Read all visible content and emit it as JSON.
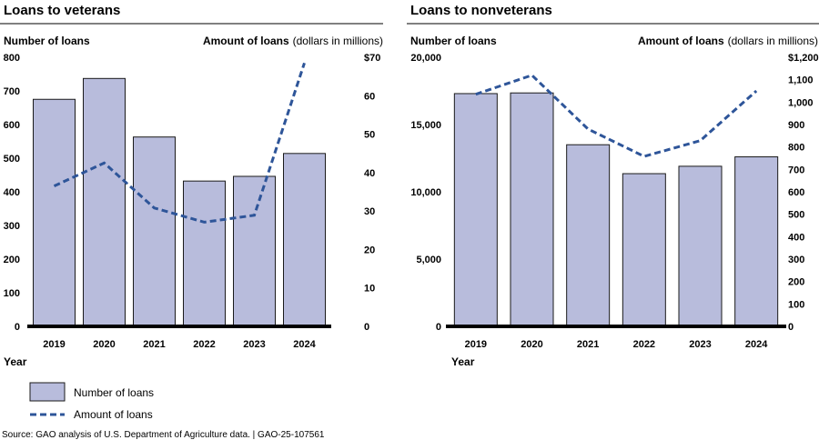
{
  "colors": {
    "bar_fill": "#b8bcdc",
    "bar_stroke": "#1a1a1a",
    "line": "#2e5599",
    "axis": "#000000"
  },
  "chart_data": [
    {
      "type": "bar",
      "title": "Loans to veterans",
      "ylabel": "Number of loans",
      "y2label": "Amount of loans",
      "y2label_units": "(dollars in millions)",
      "xlabel": "Year",
      "categories": [
        "2019",
        "2020",
        "2021",
        "2022",
        "2023",
        "2024"
      ],
      "ylim": [
        0,
        800
      ],
      "y2lim": [
        0,
        70
      ],
      "yticks": [
        "0",
        "100",
        "200",
        "300",
        "400",
        "500",
        "600",
        "700",
        "800"
      ],
      "y2ticks": [
        "0",
        "10",
        "20",
        "30",
        "40",
        "50",
        "60",
        "$70"
      ],
      "series": [
        {
          "name": "Number of loans",
          "type": "bar",
          "axis": "left",
          "values": [
            675,
            737,
            563,
            432,
            446,
            514
          ]
        },
        {
          "name": "Amount of loans",
          "type": "line",
          "axis": "right",
          "values": [
            36.5,
            42.5,
            30.8,
            27.1,
            28.9,
            68.5
          ]
        }
      ]
    },
    {
      "type": "bar",
      "title": "Loans to nonveterans",
      "ylabel": "Number of loans",
      "y2label": "Amount of loans",
      "y2label_units": "(dollars in millions)",
      "xlabel": "Year",
      "categories": [
        "2019",
        "2020",
        "2021",
        "2022",
        "2023",
        "2024"
      ],
      "ylim": [
        0,
        20000
      ],
      "y2lim": [
        0,
        1200
      ],
      "yticks": [
        "0",
        "5,000",
        "10,000",
        "15,000",
        "20,000"
      ],
      "y2ticks": [
        "0",
        "100",
        "200",
        "300",
        "400",
        "500",
        "600",
        "700",
        "800",
        "900",
        "1,000",
        "1,100",
        "$1,200"
      ],
      "series": [
        {
          "name": "Number of loans",
          "type": "bar",
          "axis": "left",
          "values": [
            17300,
            17350,
            13500,
            11350,
            11900,
            12600
          ]
        },
        {
          "name": "Amount of loans",
          "type": "line",
          "axis": "right",
          "values": [
            1035,
            1120,
            880,
            758,
            828,
            1050
          ]
        }
      ]
    }
  ],
  "legend": {
    "bar_label": "Number of loans",
    "line_label": "Amount of loans"
  },
  "source": "Source: GAO analysis of U.S. Department of Agriculture data.  |  GAO-25-107561"
}
